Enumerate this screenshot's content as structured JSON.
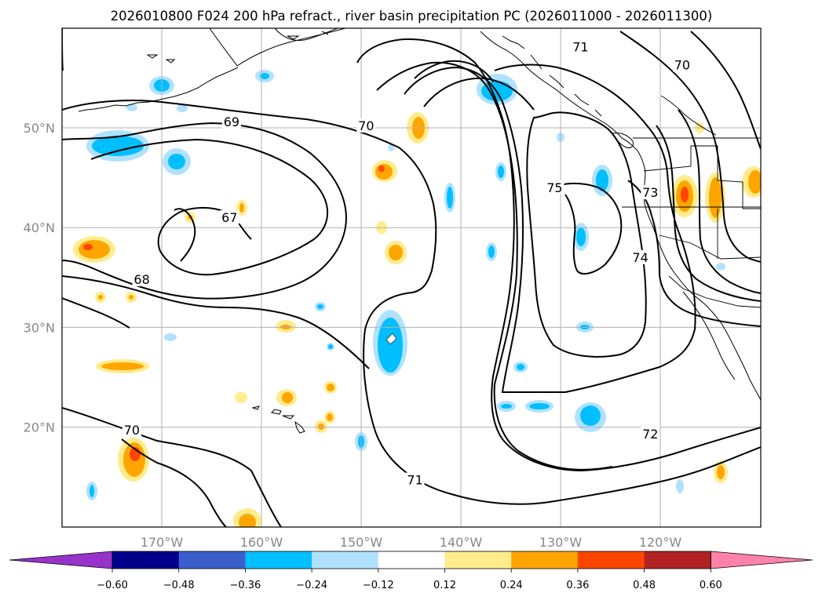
{
  "title": "2026010800 F024 200 hPa refract., river basin precipitation PC (2026011000 - 2026011300)",
  "lat_ticks": [
    {
      "lat": 50,
      "label": "50°N"
    },
    {
      "lat": 40,
      "label": "40°N"
    },
    {
      "lat": 30,
      "label": "30°N"
    },
    {
      "lat": 20,
      "label": "20°N"
    }
  ],
  "lon_ticks": [
    {
      "lon": -170,
      "label": "170°W"
    },
    {
      "lon": -160,
      "label": "160°W"
    },
    {
      "lon": -150,
      "label": "150°W"
    },
    {
      "lon": -140,
      "label": "140°W"
    },
    {
      "lon": -130,
      "label": "130°W"
    },
    {
      "lon": -120,
      "label": "120°W"
    }
  ],
  "contour_labels": [
    {
      "text": "69",
      "lon": -163.0,
      "lat": 50.4
    },
    {
      "text": "70",
      "lon": -149.5,
      "lat": 50.0
    },
    {
      "text": "71",
      "lon": -128.0,
      "lat": 57.9
    },
    {
      "text": "70",
      "lon": -117.8,
      "lat": 56.1
    },
    {
      "text": "67",
      "lon": -163.2,
      "lat": 40.8
    },
    {
      "text": "68",
      "lon": -172.0,
      "lat": 34.6
    },
    {
      "text": "75",
      "lon": -130.6,
      "lat": 43.8
    },
    {
      "text": "73",
      "lon": -121.0,
      "lat": 43.3
    },
    {
      "text": "74",
      "lon": -122.0,
      "lat": 36.8
    },
    {
      "text": "70",
      "lon": -173.0,
      "lat": 19.5
    },
    {
      "text": "71",
      "lon": -144.6,
      "lat": 14.5
    },
    {
      "text": "72",
      "lon": -121.0,
      "lat": 19.1
    }
  ],
  "colorbar": {
    "ticks": [
      "−0.60",
      "−0.48",
      "−0.36",
      "−0.24",
      "−0.12",
      "0.12",
      "0.24",
      "0.36",
      "0.48",
      "0.60"
    ],
    "colors": [
      "#9932cc",
      "#00008b",
      "#3a5fcd",
      "#00bfff",
      "#b0e2ff",
      "#ffffff",
      "#ffec8b",
      "#ffa500",
      "#ff4500",
      "#b22222",
      "#ff82ab"
    ]
  }
}
